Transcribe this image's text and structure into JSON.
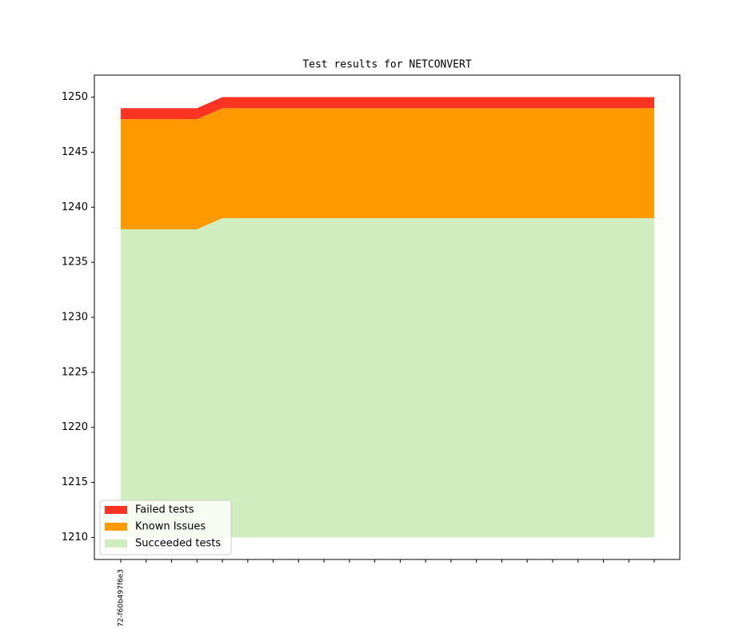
{
  "chart_data": {
    "type": "stacked_area",
    "title": "Test results for NETCONVERT",
    "categories": [
      "72-f60b497f6e3",
      null,
      null,
      null,
      null,
      null,
      null,
      null,
      null,
      null,
      null,
      null,
      null,
      null,
      null,
      null,
      null,
      null,
      null,
      null,
      null,
      null
    ],
    "area_base": 1210,
    "series": [
      {
        "name": "Failed tests",
        "color": "#ff3322",
        "values": [
          1,
          1,
          1,
          1,
          1,
          1,
          1,
          1,
          1,
          1,
          1,
          1,
          1,
          1,
          1,
          1,
          1,
          1,
          1,
          1,
          1,
          1
        ]
      },
      {
        "name": "Known Issues",
        "color": "#ff9900",
        "values": [
          10,
          10,
          10,
          10,
          10,
          10,
          10,
          10,
          10,
          10,
          10,
          10,
          10,
          10,
          10,
          10,
          10,
          10,
          10,
          10,
          10,
          10
        ]
      },
      {
        "name": "Succeeded tests",
        "color": "#cfedbf",
        "values": [
          1238,
          1238,
          1238,
          1238,
          1239,
          1239,
          1239,
          1239,
          1239,
          1239,
          1239,
          1239,
          1239,
          1239,
          1239,
          1239,
          1239,
          1239,
          1239,
          1239,
          1239,
          1239
        ]
      }
    ],
    "ylim": [
      1208,
      1252
    ],
    "yticks": [
      1210,
      1215,
      1220,
      1225,
      1230,
      1235,
      1240,
      1245,
      1250
    ],
    "legend": "lower left"
  }
}
